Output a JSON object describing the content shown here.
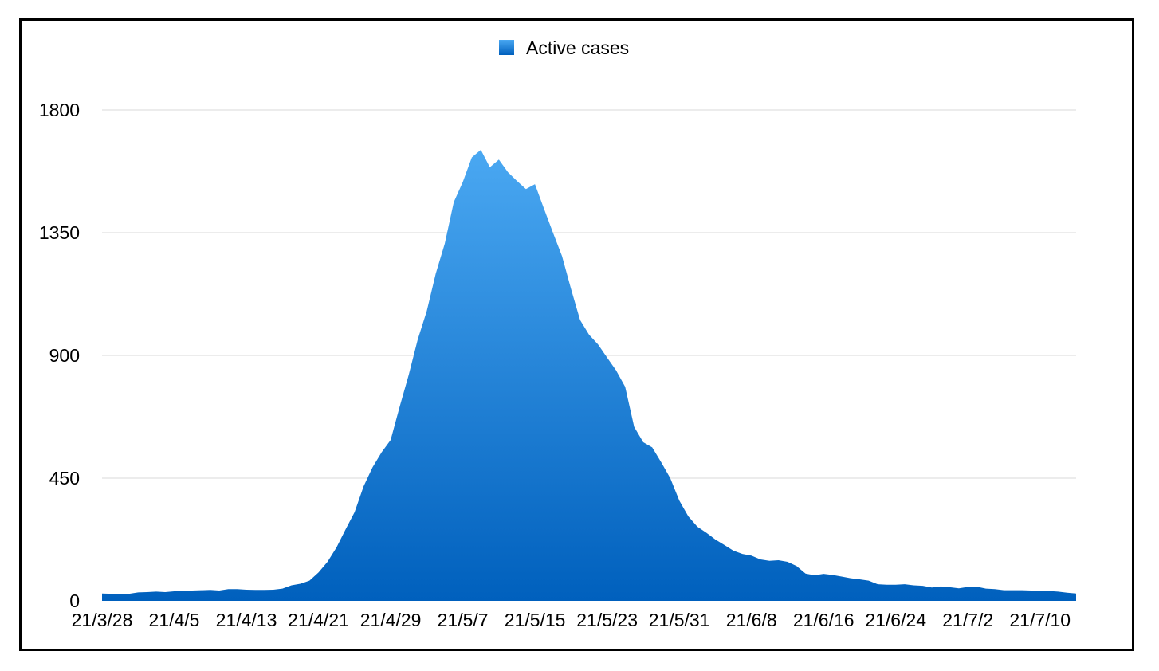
{
  "chart_data": {
    "type": "area",
    "legend_position": "top-center",
    "grid": true,
    "ylim": [
      0,
      1800
    ],
    "y_ticks": [
      0,
      450,
      900,
      1350,
      1800
    ],
    "x_tick_labels": [
      "21/3/28",
      "21/4/5",
      "21/4/13",
      "21/4/21",
      "21/4/29",
      "21/5/7",
      "21/5/15",
      "21/5/23",
      "21/5/31",
      "21/6/8",
      "21/6/16",
      "21/6/24",
      "21/7/2",
      "21/7/10"
    ],
    "x": [
      "21/3/28",
      "21/3/29",
      "21/3/30",
      "21/3/31",
      "21/4/1",
      "21/4/2",
      "21/4/3",
      "21/4/4",
      "21/4/5",
      "21/4/6",
      "21/4/7",
      "21/4/8",
      "21/4/9",
      "21/4/10",
      "21/4/11",
      "21/4/12",
      "21/4/13",
      "21/4/14",
      "21/4/15",
      "21/4/16",
      "21/4/17",
      "21/4/18",
      "21/4/19",
      "21/4/20",
      "21/4/21",
      "21/4/22",
      "21/4/23",
      "21/4/24",
      "21/4/25",
      "21/4/26",
      "21/4/27",
      "21/4/28",
      "21/4/29",
      "21/4/30",
      "21/5/1",
      "21/5/2",
      "21/5/3",
      "21/5/4",
      "21/5/5",
      "21/5/6",
      "21/5/7",
      "21/5/8",
      "21/5/9",
      "21/5/10",
      "21/5/11",
      "21/5/12",
      "21/5/13",
      "21/5/14",
      "21/5/15",
      "21/5/16",
      "21/5/17",
      "21/5/18",
      "21/5/19",
      "21/5/20",
      "21/5/21",
      "21/5/22",
      "21/5/23",
      "21/5/24",
      "21/5/25",
      "21/5/26",
      "21/5/27",
      "21/5/28",
      "21/5/29",
      "21/5/30",
      "21/5/31",
      "21/6/1",
      "21/6/2",
      "21/6/3",
      "21/6/4",
      "21/6/5",
      "21/6/6",
      "21/6/7",
      "21/6/8",
      "21/6/9",
      "21/6/10",
      "21/6/11",
      "21/6/12",
      "21/6/13",
      "21/6/14",
      "21/6/15",
      "21/6/16",
      "21/6/17",
      "21/6/18",
      "21/6/19",
      "21/6/20",
      "21/6/21",
      "21/6/22",
      "21/6/23",
      "21/6/24",
      "21/6/25",
      "21/6/26",
      "21/6/27",
      "21/6/28",
      "21/6/29",
      "21/6/30",
      "21/7/1",
      "21/7/2",
      "21/7/3",
      "21/7/4",
      "21/7/5",
      "21/7/6",
      "21/7/7",
      "21/7/8",
      "21/7/9",
      "21/7/10",
      "21/7/11",
      "21/7/12",
      "21/7/13",
      "21/7/14"
    ],
    "series": [
      {
        "name": "Active cases",
        "color_top": "#4aa8f2",
        "color_bottom": "#0060bd",
        "values": [
          27,
          26,
          25,
          26,
          31,
          32,
          34,
          32,
          35,
          36,
          38,
          39,
          40,
          38,
          43,
          43,
          41,
          40,
          40,
          41,
          45,
          57,
          63,
          74,
          104,
          143,
          196,
          262,
          325,
          420,
          490,
          545,
          590,
          712,
          828,
          958,
          1062,
          1200,
          1310,
          1462,
          1536,
          1626,
          1654,
          1590,
          1618,
          1572,
          1540,
          1510,
          1528,
          1438,
          1350,
          1264,
          1144,
          1030,
          976,
          940,
          892,
          845,
          785,
          638,
          582,
          563,
          508,
          450,
          368,
          310,
          272,
          250,
          225,
          205,
          184,
          172,
          166,
          152,
          147,
          149,
          143,
          128,
          100,
          94,
          99,
          95,
          89,
          83,
          79,
          74,
          61,
          59,
          59,
          61,
          57,
          55,
          49,
          53,
          50,
          46,
          51,
          52,
          45,
          43,
          39,
          39,
          39,
          38,
          36,
          36,
          34,
          30,
          27
        ]
      }
    ]
  }
}
